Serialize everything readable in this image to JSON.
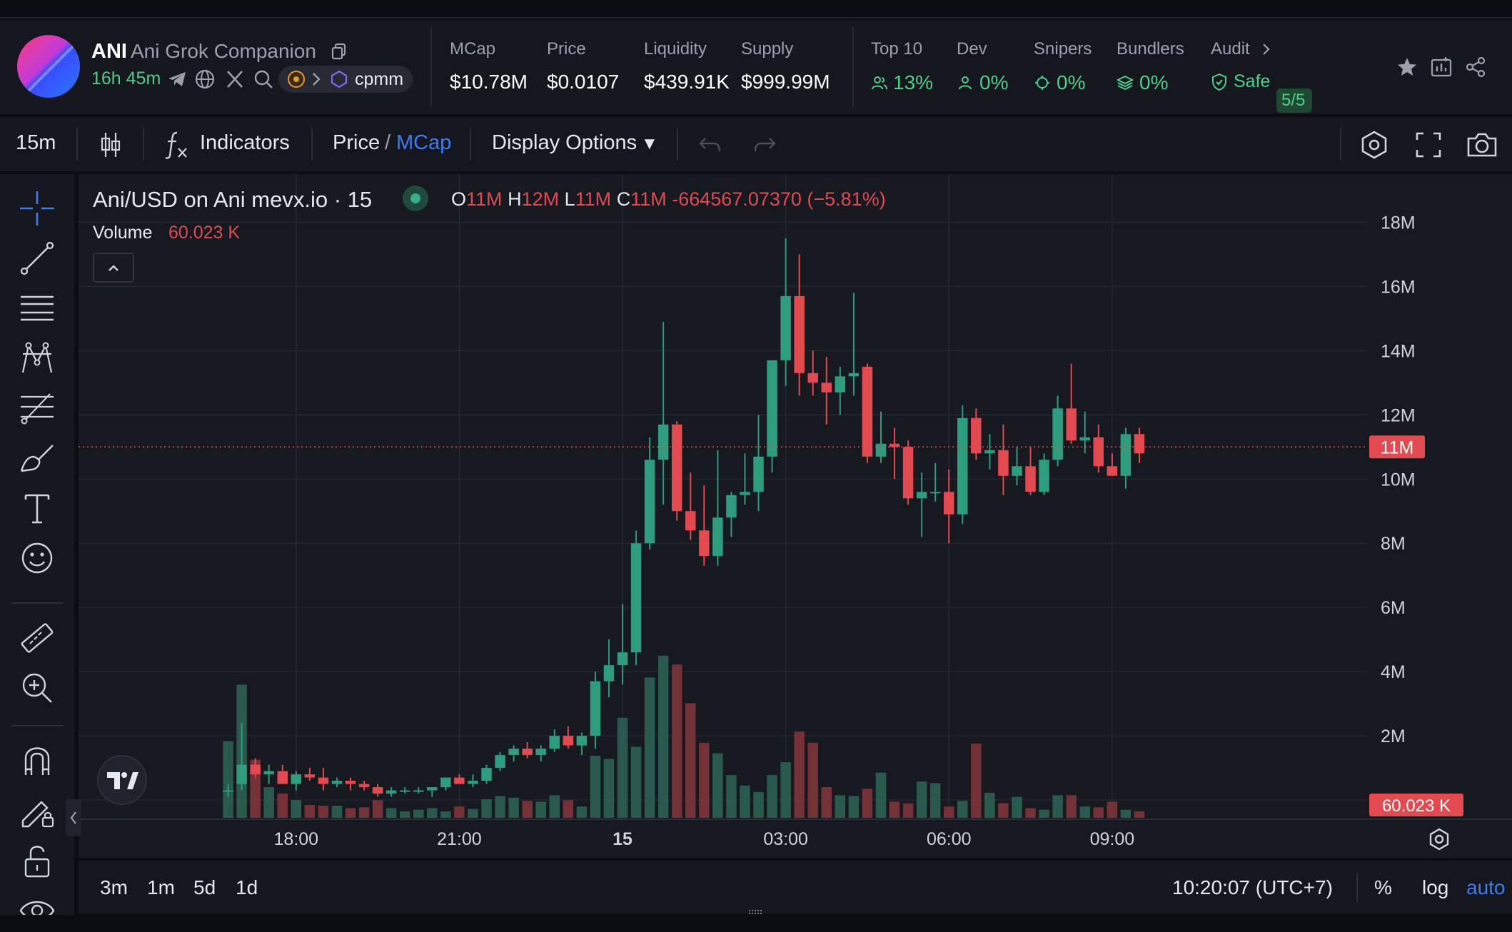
{
  "header": {
    "ticker": "ANI",
    "token_name": "Ani Grok Companion",
    "age": "16h 45m",
    "pool_label": "cpmm",
    "avatar_colors": [
      "#ff3d7f",
      "#c13bd6",
      "#3a4bff"
    ],
    "stats": [
      {
        "label": "MCap",
        "value": "$10.78M"
      },
      {
        "label": "Price",
        "value": "$0.0107"
      },
      {
        "label": "Liquidity",
        "value": "$439.91K"
      },
      {
        "label": "Supply",
        "value": "$999.99M"
      }
    ],
    "holders": [
      {
        "label": "Top 10",
        "value": "13%",
        "icon": "users-icon"
      },
      {
        "label": "Dev",
        "value": "0%",
        "icon": "user-icon"
      },
      {
        "label": "Snipers",
        "value": "0%",
        "icon": "crosshair-icon"
      },
      {
        "label": "Bundlers",
        "value": "0%",
        "icon": "layers-icon"
      }
    ],
    "audit": {
      "label": "Audit",
      "status": "Safe",
      "score": "5/5"
    }
  },
  "toolbar": {
    "interval": "15m",
    "indicators": "Indicators",
    "price_label": "Price",
    "separator": "/",
    "mcap_label": "MCap",
    "display_options": "Display Options",
    "dropdown_arrow": "▼"
  },
  "legend": {
    "title": "Ani/USD on Ani mevx.io · 15",
    "o_key": "O",
    "o_val": "11M",
    "h_key": "H",
    "h_val": "12M",
    "l_key": "L",
    "l_val": "11M",
    "c_key": "C",
    "c_val": "11M",
    "change": "-664567.07370 (−5.81%)",
    "volume_label": "Volume",
    "volume_value": "60.023 K"
  },
  "bottom": {
    "ranges": [
      "3m",
      "1m",
      "5d",
      "1d"
    ],
    "clock": "10:20:07 (UTC+7)",
    "percent": "%",
    "log": "log",
    "auto": "auto"
  },
  "colors": {
    "up": "#2e9d7e",
    "down": "#e34a50",
    "accent": "#3c7cf2",
    "green_text": "#4bd08a"
  },
  "chart_data": {
    "type": "candlestick",
    "y_tick_labels": [
      "18M",
      "16M",
      "14M",
      "12M",
      "10M",
      "8M",
      "6M",
      "4M",
      "2M",
      "0"
    ],
    "y_ticks": [
      18,
      16,
      14,
      12,
      10,
      8,
      6,
      4,
      2,
      0
    ],
    "ylim": [
      -1.8,
      19.5
    ],
    "y_unit": "M",
    "x_tick_labels": [
      "18:00",
      "21:00",
      "15",
      "03:00",
      "06:00",
      "09:00"
    ],
    "x_ticks_hours": [
      18,
      21,
      24,
      27,
      30,
      33
    ],
    "xlim_hours": [
      14.0,
      37.7
    ],
    "current_price_label": "11M",
    "current_price": 11,
    "current_volume_label": "60.023 K",
    "interval_minutes": 15,
    "candles_start_hour": 16.75,
    "candles": [
      [
        0.3,
        0.5,
        0.1,
        0.3
      ],
      [
        0.5,
        2.4,
        0.3,
        1.1
      ],
      [
        1.1,
        1.3,
        0.7,
        0.8
      ],
      [
        0.8,
        1.1,
        0.5,
        0.9
      ],
      [
        0.9,
        1.1,
        0.5,
        0.5
      ],
      [
        0.5,
        0.9,
        0.3,
        0.8
      ],
      [
        0.8,
        1.0,
        0.6,
        0.7
      ],
      [
        0.7,
        1.0,
        0.3,
        0.5
      ],
      [
        0.5,
        0.7,
        0.4,
        0.6
      ],
      [
        0.6,
        0.7,
        0.3,
        0.5
      ],
      [
        0.5,
        0.6,
        0.3,
        0.4
      ],
      [
        0.4,
        0.5,
        0.1,
        0.2
      ],
      [
        0.2,
        0.4,
        0.1,
        0.3
      ],
      [
        0.3,
        0.4,
        0.2,
        0.3
      ],
      [
        0.3,
        0.4,
        0.2,
        0.3
      ],
      [
        0.3,
        0.4,
        0.1,
        0.4
      ],
      [
        0.4,
        0.7,
        0.3,
        0.7
      ],
      [
        0.7,
        0.8,
        0.5,
        0.5
      ],
      [
        0.5,
        0.8,
        0.4,
        0.6
      ],
      [
        0.6,
        1.1,
        0.5,
        1.0
      ],
      [
        1.0,
        1.5,
        0.9,
        1.4
      ],
      [
        1.4,
        1.7,
        1.2,
        1.6
      ],
      [
        1.6,
        1.8,
        1.3,
        1.4
      ],
      [
        1.4,
        1.7,
        1.2,
        1.6
      ],
      [
        1.6,
        2.2,
        1.5,
        2.0
      ],
      [
        2.0,
        2.3,
        1.6,
        1.7
      ],
      [
        1.7,
        2.1,
        1.4,
        2.0
      ],
      [
        2.0,
        4.0,
        1.6,
        3.7
      ],
      [
        3.7,
        5.0,
        3.2,
        4.2
      ],
      [
        4.2,
        6.1,
        3.6,
        4.6
      ],
      [
        4.6,
        8.4,
        4.2,
        8.0
      ],
      [
        8.0,
        11.3,
        7.8,
        10.6
      ],
      [
        10.6,
        14.9,
        9.2,
        11.7
      ],
      [
        11.7,
        11.8,
        8.7,
        9.0
      ],
      [
        9.0,
        10.2,
        8.1,
        8.4
      ],
      [
        8.4,
        9.8,
        7.3,
        7.6
      ],
      [
        7.6,
        10.9,
        7.3,
        8.8
      ],
      [
        8.8,
        9.6,
        8.2,
        9.5
      ],
      [
        9.5,
        10.8,
        9.2,
        9.6
      ],
      [
        9.6,
        12.0,
        9.0,
        10.7
      ],
      [
        10.7,
        13.6,
        10.2,
        13.7
      ],
      [
        13.7,
        17.5,
        12.9,
        15.7
      ],
      [
        15.7,
        17.0,
        12.6,
        13.3
      ],
      [
        13.3,
        14.0,
        12.6,
        13.0
      ],
      [
        13.0,
        13.8,
        11.7,
        12.7
      ],
      [
        12.7,
        13.5,
        12.0,
        13.2
      ],
      [
        13.2,
        15.8,
        12.6,
        13.3
      ],
      [
        13.5,
        13.6,
        10.5,
        10.7
      ],
      [
        10.7,
        12.1,
        10.5,
        11.1
      ],
      [
        11.1,
        11.6,
        10.0,
        11.0
      ],
      [
        11.0,
        11.2,
        9.2,
        9.4
      ],
      [
        9.4,
        10.2,
        8.2,
        9.6
      ],
      [
        9.6,
        10.5,
        9.3,
        9.6
      ],
      [
        9.6,
        10.3,
        8.0,
        8.9
      ],
      [
        8.9,
        12.3,
        8.6,
        11.9
      ],
      [
        11.9,
        12.2,
        10.6,
        10.8
      ],
      [
        10.8,
        11.4,
        10.3,
        10.9
      ],
      [
        10.9,
        11.7,
        9.5,
        10.1
      ],
      [
        10.1,
        11.0,
        9.8,
        10.4
      ],
      [
        10.4,
        11.0,
        9.5,
        9.6
      ],
      [
        9.6,
        10.8,
        9.5,
        10.6
      ],
      [
        10.6,
        12.6,
        10.4,
        12.2
      ],
      [
        12.2,
        13.6,
        11.1,
        11.2
      ],
      [
        11.2,
        12.1,
        10.8,
        11.3
      ],
      [
        11.3,
        11.7,
        10.2,
        10.4
      ],
      [
        10.4,
        10.8,
        10.2,
        10.1
      ],
      [
        10.1,
        11.6,
        9.7,
        11.4
      ],
      [
        11.4,
        11.6,
        10.5,
        10.8
      ]
    ],
    "volume_ylim": [
      0,
      2.3
    ],
    "volumes": [
      0.95,
      1.65,
      0.72,
      0.38,
      0.3,
      0.22,
      0.16,
      0.15,
      0.15,
      0.12,
      0.13,
      0.22,
      0.12,
      0.08,
      0.1,
      0.12,
      0.08,
      0.14,
      0.11,
      0.23,
      0.27,
      0.25,
      0.21,
      0.2,
      0.28,
      0.22,
      0.14,
      0.77,
      0.73,
      1.24,
      0.88,
      1.74,
      2.01,
      1.9,
      1.42,
      0.93,
      0.8,
      0.53,
      0.4,
      0.32,
      0.53,
      0.69,
      1.07,
      0.93,
      0.38,
      0.28,
      0.27,
      0.36,
      0.56,
      0.2,
      0.18,
      0.45,
      0.43,
      0.14,
      0.21,
      0.92,
      0.31,
      0.18,
      0.26,
      0.12,
      0.1,
      0.28,
      0.28,
      0.14,
      0.13,
      0.2,
      0.1,
      0.08
    ]
  }
}
